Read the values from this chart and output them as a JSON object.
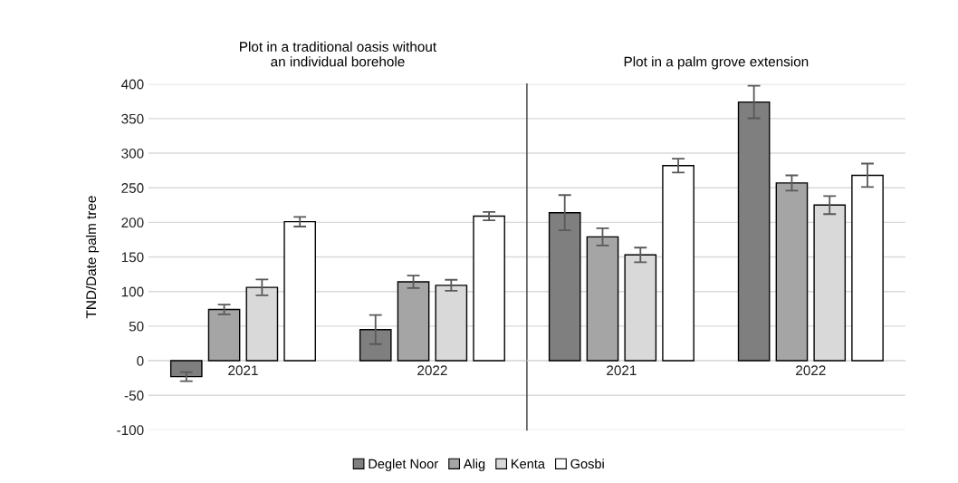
{
  "chart_data": [
    {
      "type": "bar",
      "title": "Plot in a traditional oasis without\nan individual borehole",
      "ylabel": "TND/Date palm tree",
      "categories": [
        "2021",
        "2022"
      ],
      "ylim": [
        -100,
        400
      ],
      "yticks": [
        -100,
        -50,
        0,
        50,
        100,
        150,
        200,
        250,
        300,
        350,
        400
      ],
      "grid": "y",
      "legend": "bottom",
      "series": [
        {
          "name": "Deglet Noor",
          "color": "#7f7f7f",
          "values": [
            -23,
            45
          ],
          "errors": [
            6.5,
            21
          ]
        },
        {
          "name": "Alig",
          "color": "#a5a5a5",
          "values": [
            74,
            114
          ],
          "errors": [
            7,
            9
          ]
        },
        {
          "name": "Kenta",
          "color": "#d9d9d9",
          "values": [
            106,
            109
          ],
          "errors": [
            11.5,
            8
          ]
        },
        {
          "name": "Gosbi",
          "color": "#ffffff",
          "values": [
            201,
            209
          ],
          "errors": [
            7,
            6
          ]
        }
      ]
    },
    {
      "type": "bar",
      "title": "Plot in a palm grove extension",
      "categories": [
        "2021",
        "2022"
      ],
      "ylim": [
        -100,
        400
      ],
      "yticks": [
        -100,
        -50,
        0,
        50,
        100,
        150,
        200,
        250,
        300,
        350,
        400
      ],
      "grid": "y",
      "tick_labels": "x",
      "series": [
        {
          "color": "#7f7f7f",
          "values": [
            214,
            374
          ],
          "errors": [
            25.5,
            23.5
          ]
        },
        {
          "color": "#a5a5a5",
          "values": [
            179,
            257
          ],
          "errors": [
            12.5,
            11
          ]
        },
        {
          "color": "#d9d9d9",
          "values": [
            153,
            225
          ],
          "errors": [
            10.5,
            13
          ]
        },
        {
          "color": "#ffffff",
          "values": [
            282,
            268
          ],
          "errors": [
            10,
            17
          ]
        }
      ]
    }
  ]
}
